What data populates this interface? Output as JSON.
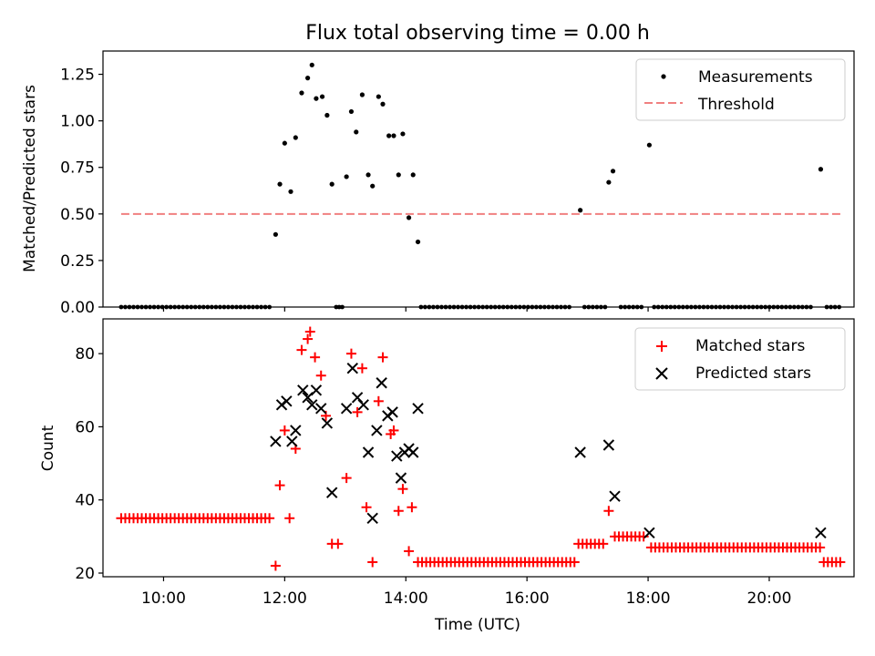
{
  "chart_data": [
    {
      "type": "scatter",
      "title": "Flux total observing time = 0.00 h",
      "xlabel": "",
      "ylabel": "Matched/Predicted stars",
      "xlim": [
        9.0,
        21.4
      ],
      "ylim": [
        0.0,
        1.375
      ],
      "yticks": [
        0.0,
        0.25,
        0.5,
        0.75,
        1.0,
        1.25
      ],
      "yticklabels": [
        "0.00",
        "0.25",
        "0.50",
        "0.75",
        "1.00",
        "1.25"
      ],
      "xticks": [
        10,
        12,
        14,
        16,
        18,
        20
      ],
      "legend": {
        "position": "upper right",
        "entries": [
          "Measurements",
          "Threshold"
        ]
      },
      "threshold": {
        "value": 0.5,
        "x_start": 9.3,
        "x_end": 21.2,
        "color": "#f08080",
        "style": "dashed"
      },
      "series": [
        {
          "name": "Measurements",
          "color": "#000000",
          "points": [
            [
              11.85,
              0.39
            ],
            [
              11.92,
              0.66
            ],
            [
              12.0,
              0.88
            ],
            [
              12.1,
              0.62
            ],
            [
              12.18,
              0.91
            ],
            [
              12.28,
              1.15
            ],
            [
              12.38,
              1.23
            ],
            [
              12.45,
              1.3
            ],
            [
              12.52,
              1.12
            ],
            [
              12.62,
              1.13
            ],
            [
              12.7,
              1.03
            ],
            [
              12.78,
              0.66
            ],
            [
              13.02,
              0.7
            ],
            [
              13.1,
              1.05
            ],
            [
              13.18,
              0.94
            ],
            [
              13.28,
              1.14
            ],
            [
              13.38,
              0.71
            ],
            [
              13.45,
              0.65
            ],
            [
              13.55,
              1.13
            ],
            [
              13.62,
              1.09
            ],
            [
              13.72,
              0.92
            ],
            [
              13.8,
              0.92
            ],
            [
              13.88,
              0.71
            ],
            [
              13.95,
              0.93
            ],
            [
              14.05,
              0.48
            ],
            [
              14.12,
              0.71
            ],
            [
              14.2,
              0.35
            ],
            [
              16.88,
              0.52
            ],
            [
              17.35,
              0.67
            ],
            [
              17.42,
              0.73
            ],
            [
              18.02,
              0.87
            ],
            [
              20.85,
              0.74
            ]
          ],
          "zeros": [
            [
              9.3,
              11.75,
              0.068
            ],
            [
              12.85,
              12.95,
              0.05
            ],
            [
              14.25,
              16.75,
              0.068
            ],
            [
              16.95,
              17.3,
              0.068
            ],
            [
              17.55,
              17.95,
              0.068
            ],
            [
              18.1,
              20.75,
              0.068
            ],
            [
              20.95,
              21.2,
              0.068
            ]
          ]
        }
      ]
    },
    {
      "type": "scatter",
      "title": "",
      "xlabel": "Time (UTC)",
      "ylabel": "Count",
      "xlim": [
        9.0,
        21.4
      ],
      "ylim": [
        19.0,
        89.5
      ],
      "yticks": [
        20,
        40,
        60,
        80
      ],
      "yticklabels": [
        "20",
        "40",
        "60",
        "80"
      ],
      "xticks": [
        10,
        12,
        14,
        16,
        18,
        20
      ],
      "xticklabels": [
        "10:00",
        "12:00",
        "14:00",
        "16:00",
        "18:00",
        "20:00"
      ],
      "legend": {
        "position": "upper right",
        "entries": [
          "Matched stars",
          "Predicted stars"
        ]
      },
      "series": [
        {
          "name": "Matched stars",
          "color": "#ff0000",
          "marker": "plus",
          "runs": [
            [
              9.3,
              11.8,
              0.068,
              35
            ],
            [
              14.2,
              16.8,
              0.068,
              23
            ],
            [
              16.85,
              17.3,
              0.068,
              28
            ],
            [
              17.45,
              17.95,
              0.068,
              30
            ],
            [
              18.05,
              20.85,
              0.068,
              27
            ],
            [
              20.9,
              21.2,
              0.068,
              23
            ]
          ],
          "points": [
            [
              11.85,
              22
            ],
            [
              11.92,
              44
            ],
            [
              12.0,
              59
            ],
            [
              12.08,
              35
            ],
            [
              12.18,
              54
            ],
            [
              12.28,
              81
            ],
            [
              12.38,
              84
            ],
            [
              12.42,
              86
            ],
            [
              12.5,
              79
            ],
            [
              12.6,
              74
            ],
            [
              12.68,
              63
            ],
            [
              12.78,
              28
            ],
            [
              12.88,
              28
            ],
            [
              13.02,
              46
            ],
            [
              13.1,
              80
            ],
            [
              13.2,
              64
            ],
            [
              13.28,
              76
            ],
            [
              13.35,
              38
            ],
            [
              13.45,
              23
            ],
            [
              13.55,
              67
            ],
            [
              13.62,
              79
            ],
            [
              13.75,
              58
            ],
            [
              13.8,
              59
            ],
            [
              13.88,
              37
            ],
            [
              13.95,
              43
            ],
            [
              14.05,
              26
            ],
            [
              14.1,
              38
            ],
            [
              17.35,
              37
            ]
          ]
        },
        {
          "name": "Predicted stars",
          "color": "#000000",
          "marker": "x",
          "points": [
            [
              11.85,
              56
            ],
            [
              11.95,
              66
            ],
            [
              12.03,
              67
            ],
            [
              12.12,
              56
            ],
            [
              12.18,
              59
            ],
            [
              12.3,
              70
            ],
            [
              12.38,
              68
            ],
            [
              12.45,
              66
            ],
            [
              12.52,
              70
            ],
            [
              12.6,
              65
            ],
            [
              12.7,
              61
            ],
            [
              12.78,
              42
            ],
            [
              13.02,
              65
            ],
            [
              13.12,
              76
            ],
            [
              13.2,
              68
            ],
            [
              13.3,
              66
            ],
            [
              13.38,
              53
            ],
            [
              13.45,
              35
            ],
            [
              13.52,
              59
            ],
            [
              13.6,
              72
            ],
            [
              13.7,
              63
            ],
            [
              13.78,
              64
            ],
            [
              13.85,
              52
            ],
            [
              13.92,
              46
            ],
            [
              13.98,
              53
            ],
            [
              14.05,
              54
            ],
            [
              14.12,
              53
            ],
            [
              14.2,
              65
            ],
            [
              16.88,
              53
            ],
            [
              17.35,
              55
            ],
            [
              17.45,
              41
            ],
            [
              18.02,
              31
            ],
            [
              20.85,
              31
            ]
          ]
        }
      ]
    }
  ]
}
